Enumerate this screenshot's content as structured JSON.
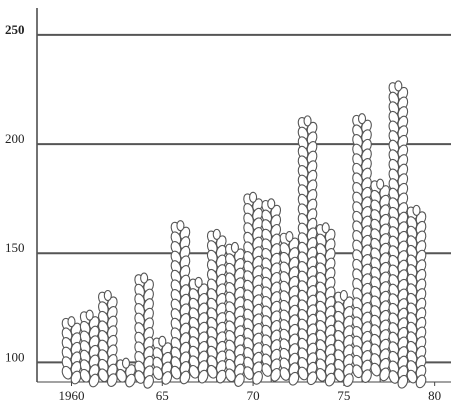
{
  "chart_data": {
    "type": "pictogram",
    "x": [
      1960,
      1961,
      1962,
      1963,
      1964,
      1965,
      1966,
      1967,
      1968,
      1969,
      1970,
      1971,
      1972,
      1973,
      1974,
      1975,
      1976,
      1977,
      1978,
      1979
    ],
    "values": [
      120,
      123,
      132,
      101,
      140,
      111,
      164,
      138,
      160,
      154,
      177,
      174,
      159,
      212,
      163,
      132,
      213,
      183,
      228,
      171
    ],
    "xlim": [
      1958.1,
      1980.9
    ],
    "xticks": [
      1960,
      {
        "value": 1965,
        "label": "65"
      },
      {
        "value": 1970,
        "label": "70"
      },
      {
        "value": 1975,
        "label": "75"
      },
      {
        "value": 1980,
        "label": "80"
      }
    ],
    "ylim": [
      91,
      266
    ],
    "yticks": [
      100,
      150,
      200,
      250
    ],
    "grid": true,
    "color": "#555555"
  }
}
